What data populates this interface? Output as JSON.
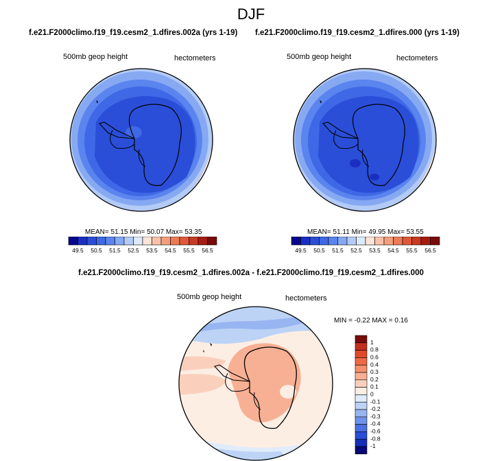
{
  "title": "DJF",
  "panels": [
    {
      "case": "f.e21.F2000climo.f19_f19.cesm2_1.dfires.002a (yrs 1-19)",
      "variable": "500mb geop height",
      "units": "hectometers",
      "mean_label": "MEAN=",
      "mean": "51.15",
      "min_label": "Min=",
      "min": "50.07",
      "max_label": "Max=",
      "max": "53.35"
    },
    {
      "case": "f.e21.F2000climo.f19_f19.cesm2_1.dfires.000 (yrs 1-19)",
      "variable": "500mb geop height",
      "units": "hectometers",
      "mean_label": "MEAN=",
      "mean": "51.11",
      "min_label": "Min=",
      "min": "49.95",
      "max_label": "Max=",
      "max": "53.55"
    }
  ],
  "diff": {
    "case": "f.e21.F2000climo.f19_f19.cesm2_1.dfires.002a - f.e21.F2000climo.f19_f19.cesm2_1.dfires.000",
    "variable": "500mb geop height",
    "units": "hectometers",
    "min_label": "MIN =",
    "min": "-0.22",
    "max_label": "MAX =",
    "max": "0.16"
  },
  "chart_data": [
    {
      "type": "heatmap",
      "projection": "south-polar-stereographic",
      "colorbar": {
        "orientation": "horizontal",
        "tick_labels": [
          "49.5",
          "50.5",
          "51.5",
          "52.5",
          "53.5",
          "54.5",
          "55.5",
          "56.5"
        ],
        "levels": [
          49.5,
          50,
          50.5,
          51,
          51.5,
          52,
          52.5,
          53,
          53.5,
          54,
          54.5,
          55,
          55.5,
          56,
          56.5
        ],
        "colors": [
          "#08088c",
          "#1a2fc2",
          "#2a4ed8",
          "#3f68e6",
          "#5a84ee",
          "#86a9f2",
          "#b3cbf6",
          "#ddeaf9",
          "#fde4d8",
          "#f8c2a8",
          "#f39f7e",
          "#ec7b56",
          "#e0583a",
          "#c93a22",
          "#a61c12",
          "#780b0b"
        ]
      }
    },
    {
      "type": "heatmap",
      "projection": "south-polar-stereographic",
      "colorbar": {
        "orientation": "horizontal",
        "tick_labels": [
          "49.5",
          "50.5",
          "51.5",
          "52.5",
          "53.5",
          "54.5",
          "55.5",
          "56.5"
        ],
        "levels": [
          49.5,
          50,
          50.5,
          51,
          51.5,
          52,
          52.5,
          53,
          53.5,
          54,
          54.5,
          55,
          55.5,
          56,
          56.5
        ],
        "colors": [
          "#08088c",
          "#1a2fc2",
          "#2a4ed8",
          "#3f68e6",
          "#5a84ee",
          "#86a9f2",
          "#b3cbf6",
          "#ddeaf9",
          "#fde4d8",
          "#f8c2a8",
          "#f39f7e",
          "#ec7b56",
          "#e0583a",
          "#c93a22",
          "#a61c12",
          "#780b0b"
        ]
      }
    },
    {
      "type": "heatmap",
      "projection": "south-polar-stereographic",
      "colorbar": {
        "orientation": "vertical",
        "tick_labels": [
          "1",
          "0.8",
          "0.6",
          "0.4",
          "0.3",
          "0.2",
          "0.1",
          "0",
          "-0.1",
          "-0.2",
          "-0.3",
          "-0.4",
          "-0.6",
          "-0.8",
          "-1"
        ],
        "colors": [
          "#780b0b",
          "#c32f1d",
          "#e04a2c",
          "#ee6a45",
          "#f4906b",
          "#f7b094",
          "#fad0bd",
          "#fdeee4",
          "#e0ecfa",
          "#bdd3f6",
          "#97b5f0",
          "#6f93ea",
          "#4a70e2",
          "#2a4ed8",
          "#152fb8",
          "#080878"
        ]
      }
    }
  ]
}
